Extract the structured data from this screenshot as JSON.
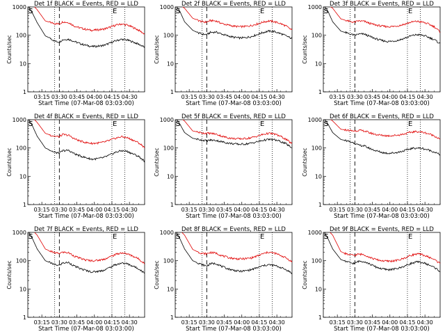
{
  "chart_data": {
    "type": "line",
    "ylabel": "Counts/sec",
    "xlabel": "Start Time (07-Mar-08 03:03:00)",
    "scale_y": "log",
    "ylim": [
      1,
      1000
    ],
    "y_ticks": [
      "1",
      "10",
      "100",
      "1000"
    ],
    "xlim_minutes_after_start": [
      0,
      100
    ],
    "x_ticks": [
      "03:15",
      "03:30",
      "03:45",
      "04:00",
      "04:15",
      "04:30"
    ],
    "x_tick_minutes_after_start": [
      12,
      27,
      42,
      57,
      72,
      87
    ],
    "series": [
      {
        "name": "Events",
        "color": "#000000"
      },
      {
        "name": "LLD",
        "color": "#e00000"
      }
    ],
    "panels": [
      {
        "title": "Det 1f BLACK = Events, RED = LLD",
        "markers": [
          "S",
          "E"
        ],
        "dotted_min": [
          -1,
          23,
          72,
          83
        ],
        "dashed_min": [
          27
        ],
        "x": [
          0,
          4,
          8,
          15,
          20,
          23,
          27,
          30,
          35,
          40,
          45,
          50,
          55,
          60,
          65,
          70,
          75,
          80,
          85,
          90,
          95,
          100
        ],
        "events": [
          1200,
          600,
          280,
          95,
          75,
          62,
          58,
          70,
          72,
          60,
          50,
          44,
          40,
          41,
          44,
          52,
          63,
          72,
          68,
          58,
          48,
          38
        ],
        "lld": [
          1200,
          1200,
          800,
          320,
          280,
          260,
          250,
          300,
          280,
          210,
          180,
          160,
          150,
          155,
          165,
          190,
          225,
          250,
          230,
          190,
          150,
          110
        ]
      },
      {
        "title": "Det 2f BLACK = Events, RED = LLD",
        "markers": [
          "S",
          "E"
        ],
        "dotted_min": [
          -1,
          23,
          72,
          83
        ],
        "dashed_min": [
          27
        ],
        "x": [
          0,
          4,
          8,
          15,
          20,
          23,
          27,
          30,
          35,
          40,
          45,
          50,
          55,
          60,
          65,
          70,
          75,
          80,
          85,
          90,
          95,
          100
        ],
        "events": [
          1200,
          700,
          300,
          150,
          120,
          110,
          105,
          125,
          130,
          110,
          95,
          85,
          80,
          82,
          90,
          105,
          125,
          140,
          135,
          115,
          95,
          75
        ],
        "lld": [
          1200,
          1200,
          900,
          400,
          330,
          300,
          290,
          330,
          320,
          260,
          230,
          210,
          200,
          205,
          220,
          250,
          290,
          320,
          300,
          260,
          210,
          150
        ]
      },
      {
        "title": "Det 3f BLACK = Events, RED = LLD",
        "markers": [
          "S",
          "E"
        ],
        "dotted_min": [
          -1,
          23,
          72,
          83
        ],
        "dashed_min": [
          27
        ],
        "x": [
          0,
          4,
          8,
          15,
          20,
          23,
          27,
          30,
          35,
          40,
          45,
          50,
          55,
          60,
          65,
          70,
          75,
          80,
          85,
          90,
          95,
          100
        ],
        "events": [
          1200,
          700,
          300,
          140,
          120,
          110,
          100,
          110,
          110,
          90,
          75,
          65,
          60,
          62,
          68,
          80,
          95,
          105,
          100,
          85,
          70,
          50
        ],
        "lld": [
          1200,
          1200,
          900,
          380,
          330,
          300,
          290,
          320,
          310,
          260,
          230,
          210,
          200,
          205,
          220,
          250,
          290,
          310,
          290,
          250,
          200,
          130
        ]
      },
      {
        "title": "Det 4f BLACK = Events, RED = LLD",
        "markers": [
          "S",
          "E"
        ],
        "dotted_min": [
          -1,
          23,
          72,
          83
        ],
        "dashed_min": [
          27
        ],
        "x": [
          0,
          4,
          8,
          15,
          20,
          23,
          27,
          30,
          35,
          40,
          45,
          50,
          55,
          60,
          65,
          70,
          75,
          80,
          85,
          90,
          95,
          100
        ],
        "events": [
          1200,
          600,
          260,
          100,
          80,
          70,
          65,
          80,
          82,
          62,
          52,
          45,
          40,
          42,
          46,
          56,
          70,
          80,
          76,
          62,
          50,
          34
        ],
        "lld": [
          1200,
          1200,
          800,
          330,
          280,
          260,
          250,
          300,
          280,
          210,
          175,
          155,
          145,
          150,
          160,
          185,
          220,
          250,
          230,
          190,
          150,
          105
        ]
      },
      {
        "title": "Det 5f BLACK = Events, RED = LLD",
        "markers": [
          "S",
          "E"
        ],
        "dotted_min": [
          -1,
          23,
          72,
          83
        ],
        "dashed_min": [
          27
        ],
        "x": [
          0,
          4,
          8,
          15,
          20,
          23,
          27,
          30,
          35,
          40,
          45,
          50,
          55,
          60,
          65,
          70,
          75,
          80,
          85,
          90,
          95,
          100
        ],
        "events": [
          1200,
          700,
          350,
          220,
          200,
          190,
          180,
          190,
          185,
          165,
          150,
          140,
          135,
          138,
          148,
          165,
          185,
          200,
          195,
          170,
          140,
          100
        ],
        "lld": [
          1200,
          1200,
          900,
          400,
          360,
          340,
          330,
          330,
          310,
          260,
          230,
          215,
          210,
          215,
          230,
          260,
          300,
          330,
          310,
          260,
          200,
          140
        ]
      },
      {
        "title": "Det 6f BLACK = Events, RED = LLD",
        "markers": [
          "S",
          "E"
        ],
        "dotted_min": [
          -1,
          23,
          72,
          83
        ],
        "dashed_min": [
          27
        ],
        "x": [
          0,
          4,
          8,
          15,
          20,
          23,
          27,
          30,
          35,
          40,
          45,
          50,
          55,
          60,
          65,
          70,
          75,
          80,
          85,
          90,
          95,
          100
        ],
        "events": [
          1200,
          700,
          350,
          200,
          180,
          165,
          150,
          125,
          118,
          95,
          80,
          70,
          65,
          67,
          72,
          82,
          95,
          100,
          96,
          85,
          72,
          58
        ],
        "lld": [
          1200,
          1200,
          900,
          460,
          430,
          410,
          400,
          420,
          400,
          340,
          300,
          280,
          270,
          275,
          290,
          320,
          360,
          380,
          360,
          320,
          270,
          200
        ]
      },
      {
        "title": "Det 7f BLACK = Events, RED = LLD",
        "markers": [
          "S",
          "E"
        ],
        "dotted_min": [
          -1,
          23,
          72,
          83
        ],
        "dashed_min": [
          27
        ],
        "x": [
          0,
          4,
          8,
          15,
          20,
          23,
          27,
          30,
          35,
          40,
          45,
          50,
          55,
          60,
          65,
          70,
          75,
          80,
          85,
          90,
          95,
          100
        ],
        "events": [
          1200,
          600,
          260,
          100,
          82,
          72,
          68,
          84,
          86,
          64,
          52,
          45,
          40,
          42,
          46,
          57,
          72,
          82,
          78,
          64,
          52,
          36
        ],
        "lld": [
          1200,
          1200,
          800,
          260,
          210,
          190,
          180,
          200,
          190,
          145,
          120,
          105,
          100,
          103,
          112,
          135,
          165,
          190,
          175,
          145,
          115,
          80
        ]
      },
      {
        "title": "Det 8f BLACK = Events, RED = LLD",
        "markers": [
          "S",
          "E"
        ],
        "dotted_min": [
          -1,
          23,
          72,
          83
        ],
        "dashed_min": [
          27
        ],
        "x": [
          0,
          4,
          8,
          15,
          20,
          23,
          27,
          30,
          35,
          40,
          45,
          50,
          55,
          60,
          65,
          70,
          75,
          80,
          85,
          90,
          95,
          100
        ],
        "events": [
          1200,
          600,
          260,
          100,
          82,
          72,
          65,
          78,
          80,
          62,
          52,
          46,
          42,
          44,
          48,
          56,
          66,
          72,
          68,
          58,
          48,
          36
        ],
        "lld": [
          1200,
          1200,
          800,
          250,
          200,
          180,
          175,
          195,
          185,
          150,
          130,
          120,
          115,
          118,
          125,
          145,
          175,
          200,
          185,
          155,
          125,
          90
        ]
      },
      {
        "title": "Det 9f BLACK = Events, RED = LLD",
        "markers": [
          "S",
          "E"
        ],
        "dotted_min": [
          -1,
          23,
          72,
          83
        ],
        "dashed_min": [
          27
        ],
        "x": [
          0,
          4,
          8,
          15,
          20,
          23,
          27,
          30,
          35,
          40,
          45,
          50,
          55,
          60,
          65,
          70,
          75,
          80,
          85,
          90,
          95,
          100
        ],
        "events": [
          1200,
          600,
          260,
          110,
          92,
          84,
          80,
          95,
          95,
          75,
          60,
          52,
          48,
          50,
          55,
          66,
          80,
          90,
          86,
          72,
          58,
          42
        ],
        "lld": [
          1200,
          1200,
          800,
          210,
          170,
          160,
          155,
          170,
          165,
          130,
          110,
          100,
          96,
          98,
          106,
          126,
          155,
          175,
          162,
          135,
          110,
          80
        ]
      }
    ]
  }
}
